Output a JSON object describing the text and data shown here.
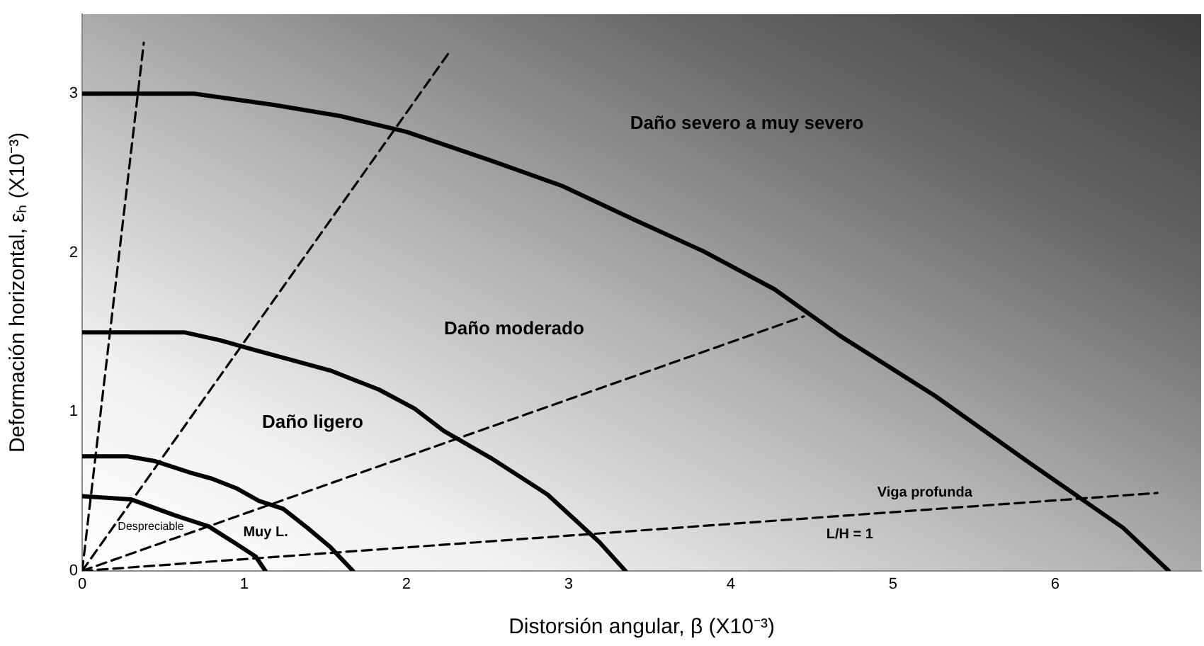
{
  "chart_data": {
    "type": "line",
    "xlabel": "Distorsión angular, β (X10⁻³)",
    "ylabel": "Deformación horizontal, εₕ (X10⁻³)",
    "xlim": [
      0,
      6.9
    ],
    "xticks": [
      0,
      1,
      2,
      3,
      4,
      5,
      6
    ],
    "ylim": [
      0,
      3.5
    ],
    "yticks": [
      0,
      1,
      2,
      3
    ],
    "line_style": "solid",
    "marker": "none",
    "legend": false,
    "series": [
      {
        "color": "#000000",
        "x": [
          0,
          0.69,
          1.18,
          1.59,
          2.0,
          2.52,
          2.96,
          3.4,
          3.83,
          4.27,
          4.67,
          5.26,
          5.84,
          6.42,
          6.7
        ],
        "values": [
          3.0,
          3.0,
          2.93,
          2.86,
          2.76,
          2.58,
          2.42,
          2.21,
          2.01,
          1.77,
          1.48,
          1.1,
          0.68,
          0.27,
          0
        ]
      },
      {
        "color": "#000000",
        "x": [
          0,
          0.63,
          0.85,
          1.06,
          1.53,
          1.83,
          2.05,
          2.23,
          2.52,
          2.87,
          3.19,
          3.35
        ],
        "values": [
          1.5,
          1.5,
          1.45,
          1.39,
          1.26,
          1.14,
          1.02,
          0.88,
          0.71,
          0.48,
          0.18,
          0
        ]
      },
      {
        "color": "#000000",
        "x": [
          0,
          0.28,
          0.45,
          0.66,
          0.8,
          0.95,
          1.09,
          1.24,
          1.39,
          1.53,
          1.67
        ],
        "values": [
          0.72,
          0.72,
          0.69,
          0.62,
          0.58,
          0.52,
          0.44,
          0.39,
          0.27,
          0.15,
          0
        ]
      },
      {
        "color": "#000000",
        "x": [
          0,
          0.3,
          0.57,
          0.78,
          0.95,
          1.07,
          1.13
        ],
        "values": [
          0.47,
          0.45,
          0.35,
          0.28,
          0.17,
          0.09,
          0
        ]
      },
      {
        "color": "#000000",
        "line_style": "dashed",
        "x": [
          0,
          0.38
        ],
        "values": [
          0,
          3.32
        ]
      },
      {
        "color": "#000000",
        "line_style": "dashed",
        "x": [
          0,
          2.27
        ],
        "values": [
          0,
          3.27
        ]
      },
      {
        "color": "#000000",
        "line_style": "dashed",
        "x": [
          0,
          4.45
        ],
        "values": [
          0,
          1.6
        ]
      },
      {
        "color": "#000000",
        "line_style": "dashed",
        "x": [
          0,
          6.63
        ],
        "values": [
          0,
          0.49
        ]
      }
    ],
    "annotations": [
      "Daño severo a muy severo",
      "Daño moderado",
      "Daño ligero",
      "Muy L.",
      "Despreciable",
      "Viga profunda",
      "L/H = 1"
    ]
  }
}
